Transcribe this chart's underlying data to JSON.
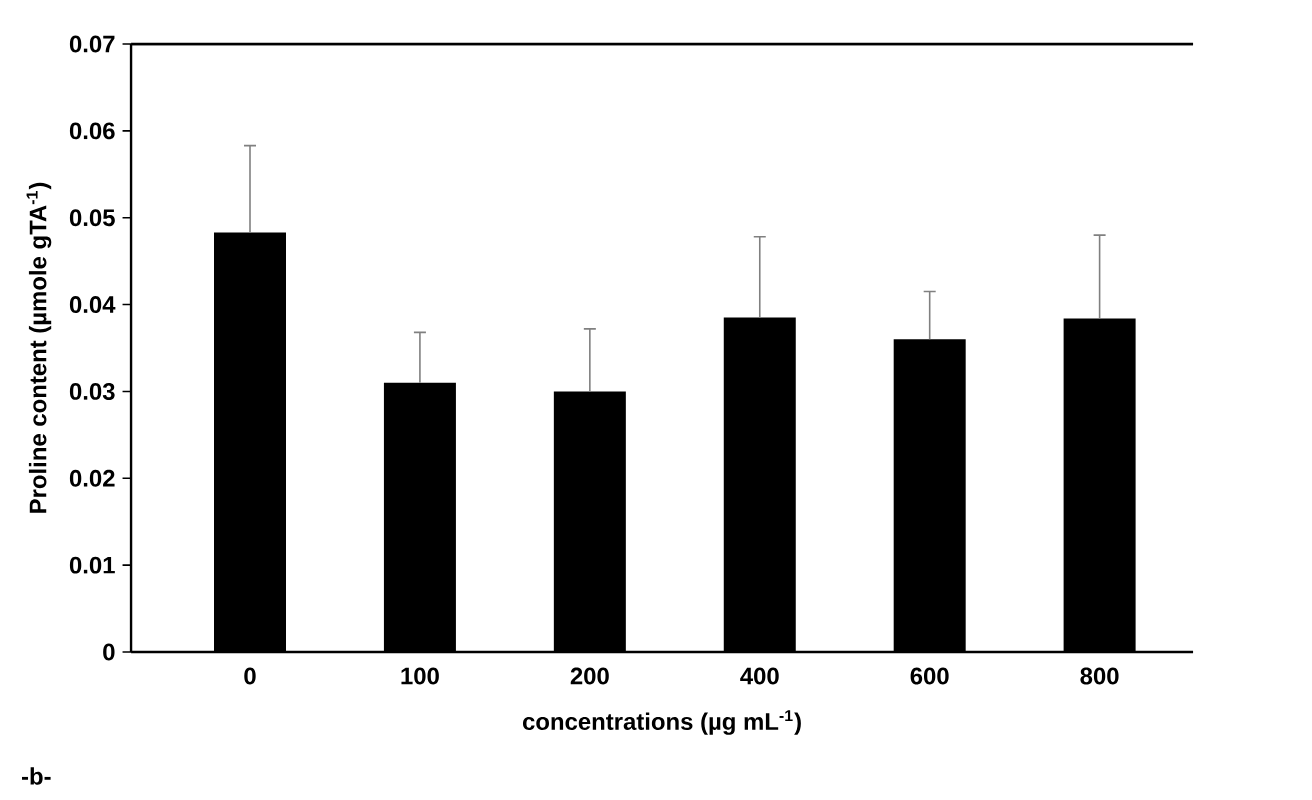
{
  "chart_data": {
    "type": "bar",
    "categories": [
      "0",
      "100",
      "200",
      "400",
      "600",
      "800"
    ],
    "values": [
      0.0483,
      0.031,
      0.03,
      0.0385,
      0.036,
      0.0384
    ],
    "errors": [
      [
        0.0483,
        0.0583
      ],
      [
        0.031,
        0.0368
      ],
      [
        0.03,
        0.0372
      ],
      [
        0.0385,
        0.0478
      ],
      [
        0.036,
        0.0415
      ],
      [
        0.0384,
        0.048
      ]
    ],
    "color": "#000000",
    "xlabel": "concentrations (µg mL$^{-1}$)",
    "ylabel": "Proline content (µmole gTA$^{-1}$)",
    "annotations": [
      "-b-"
    ],
    "ylim": [
      0,
      0.07
    ],
    "yticks": [
      0,
      0.01,
      0.02,
      0.03,
      0.04,
      0.05,
      0.06,
      0.07
    ],
    "grid": false
  }
}
